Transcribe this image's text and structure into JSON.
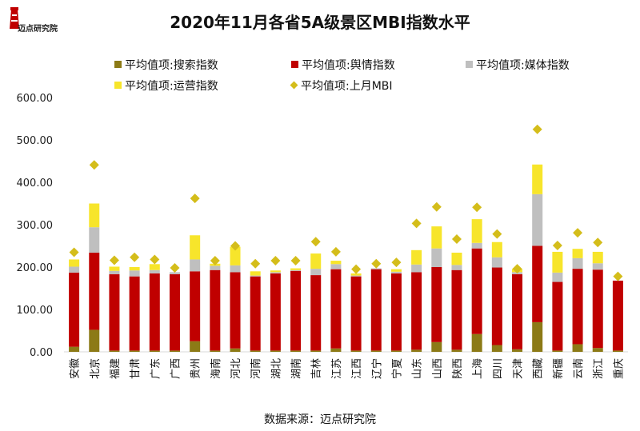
{
  "logo": {
    "text": "迈点研究院"
  },
  "footer": {
    "source": "数据来源：迈点研究院"
  },
  "colors": {
    "search": "#8c7a16",
    "public": "#c00000",
    "media": "#bfbfbf",
    "ops": "#f7e52b",
    "mbi": "#d4bd1a"
  },
  "chart_data": {
    "type": "bar",
    "title": "2020年11月各省5A级景区MBI指数水平",
    "xlabel": "",
    "ylabel": "",
    "ylim": [
      0,
      600
    ],
    "yticks": [
      "0.00",
      "100.00",
      "200.00",
      "300.00",
      "400.00",
      "500.00",
      "600.00"
    ],
    "grid": false,
    "legend_position": "top",
    "categories": [
      "安徽",
      "北京",
      "福建",
      "甘肃",
      "广东",
      "广西",
      "贵州",
      "海南",
      "河北",
      "河南",
      "湖北",
      "湖南",
      "吉林",
      "江苏",
      "江西",
      "辽宁",
      "宁夏",
      "山东",
      "山西",
      "陕西",
      "上海",
      "四川",
      "天津",
      "西藏",
      "新疆",
      "云南",
      "浙江",
      "重庆"
    ],
    "series": [
      {
        "name": "平均值项:搜索指数",
        "stack": true,
        "values": [
          12,
          52,
          3,
          3,
          3,
          3,
          25,
          3,
          8,
          3,
          3,
          3,
          3,
          8,
          3,
          3,
          3,
          5,
          23,
          5,
          42,
          16,
          6,
          70,
          3,
          18,
          9,
          3
        ]
      },
      {
        "name": "平均值项:舆情指数",
        "stack": true,
        "values": [
          175,
          182,
          180,
          175,
          182,
          180,
          165,
          190,
          180,
          175,
          182,
          188,
          178,
          187,
          175,
          192,
          182,
          183,
          177,
          188,
          202,
          183,
          177,
          180,
          162,
          178,
          185,
          165
        ]
      },
      {
        "name": "平均值项:媒体指数",
        "stack": true,
        "values": [
          14,
          60,
          8,
          14,
          8,
          5,
          28,
          10,
          16,
          2,
          3,
          2,
          15,
          12,
          2,
          2,
          4,
          18,
          44,
          12,
          13,
          24,
          5,
          122,
          22,
          25,
          15,
          0
        ]
      },
      {
        "name": "平均值项:运营指数",
        "stack": true,
        "values": [
          17,
          56,
          10,
          8,
          14,
          0,
          57,
          5,
          44,
          10,
          4,
          4,
          36,
          8,
          5,
          0,
          6,
          34,
          52,
          29,
          56,
          36,
          8,
          70,
          49,
          22,
          27,
          0
        ]
      },
      {
        "name": "平均值项:上月MBI",
        "type": "scatter",
        "values": [
          235,
          441,
          216,
          223,
          218,
          198,
          362,
          215,
          250,
          208,
          215,
          215,
          260,
          236,
          195,
          208,
          211,
          303,
          342,
          266,
          341,
          278,
          196,
          525,
          251,
          281,
          258,
          178
        ]
      }
    ]
  }
}
